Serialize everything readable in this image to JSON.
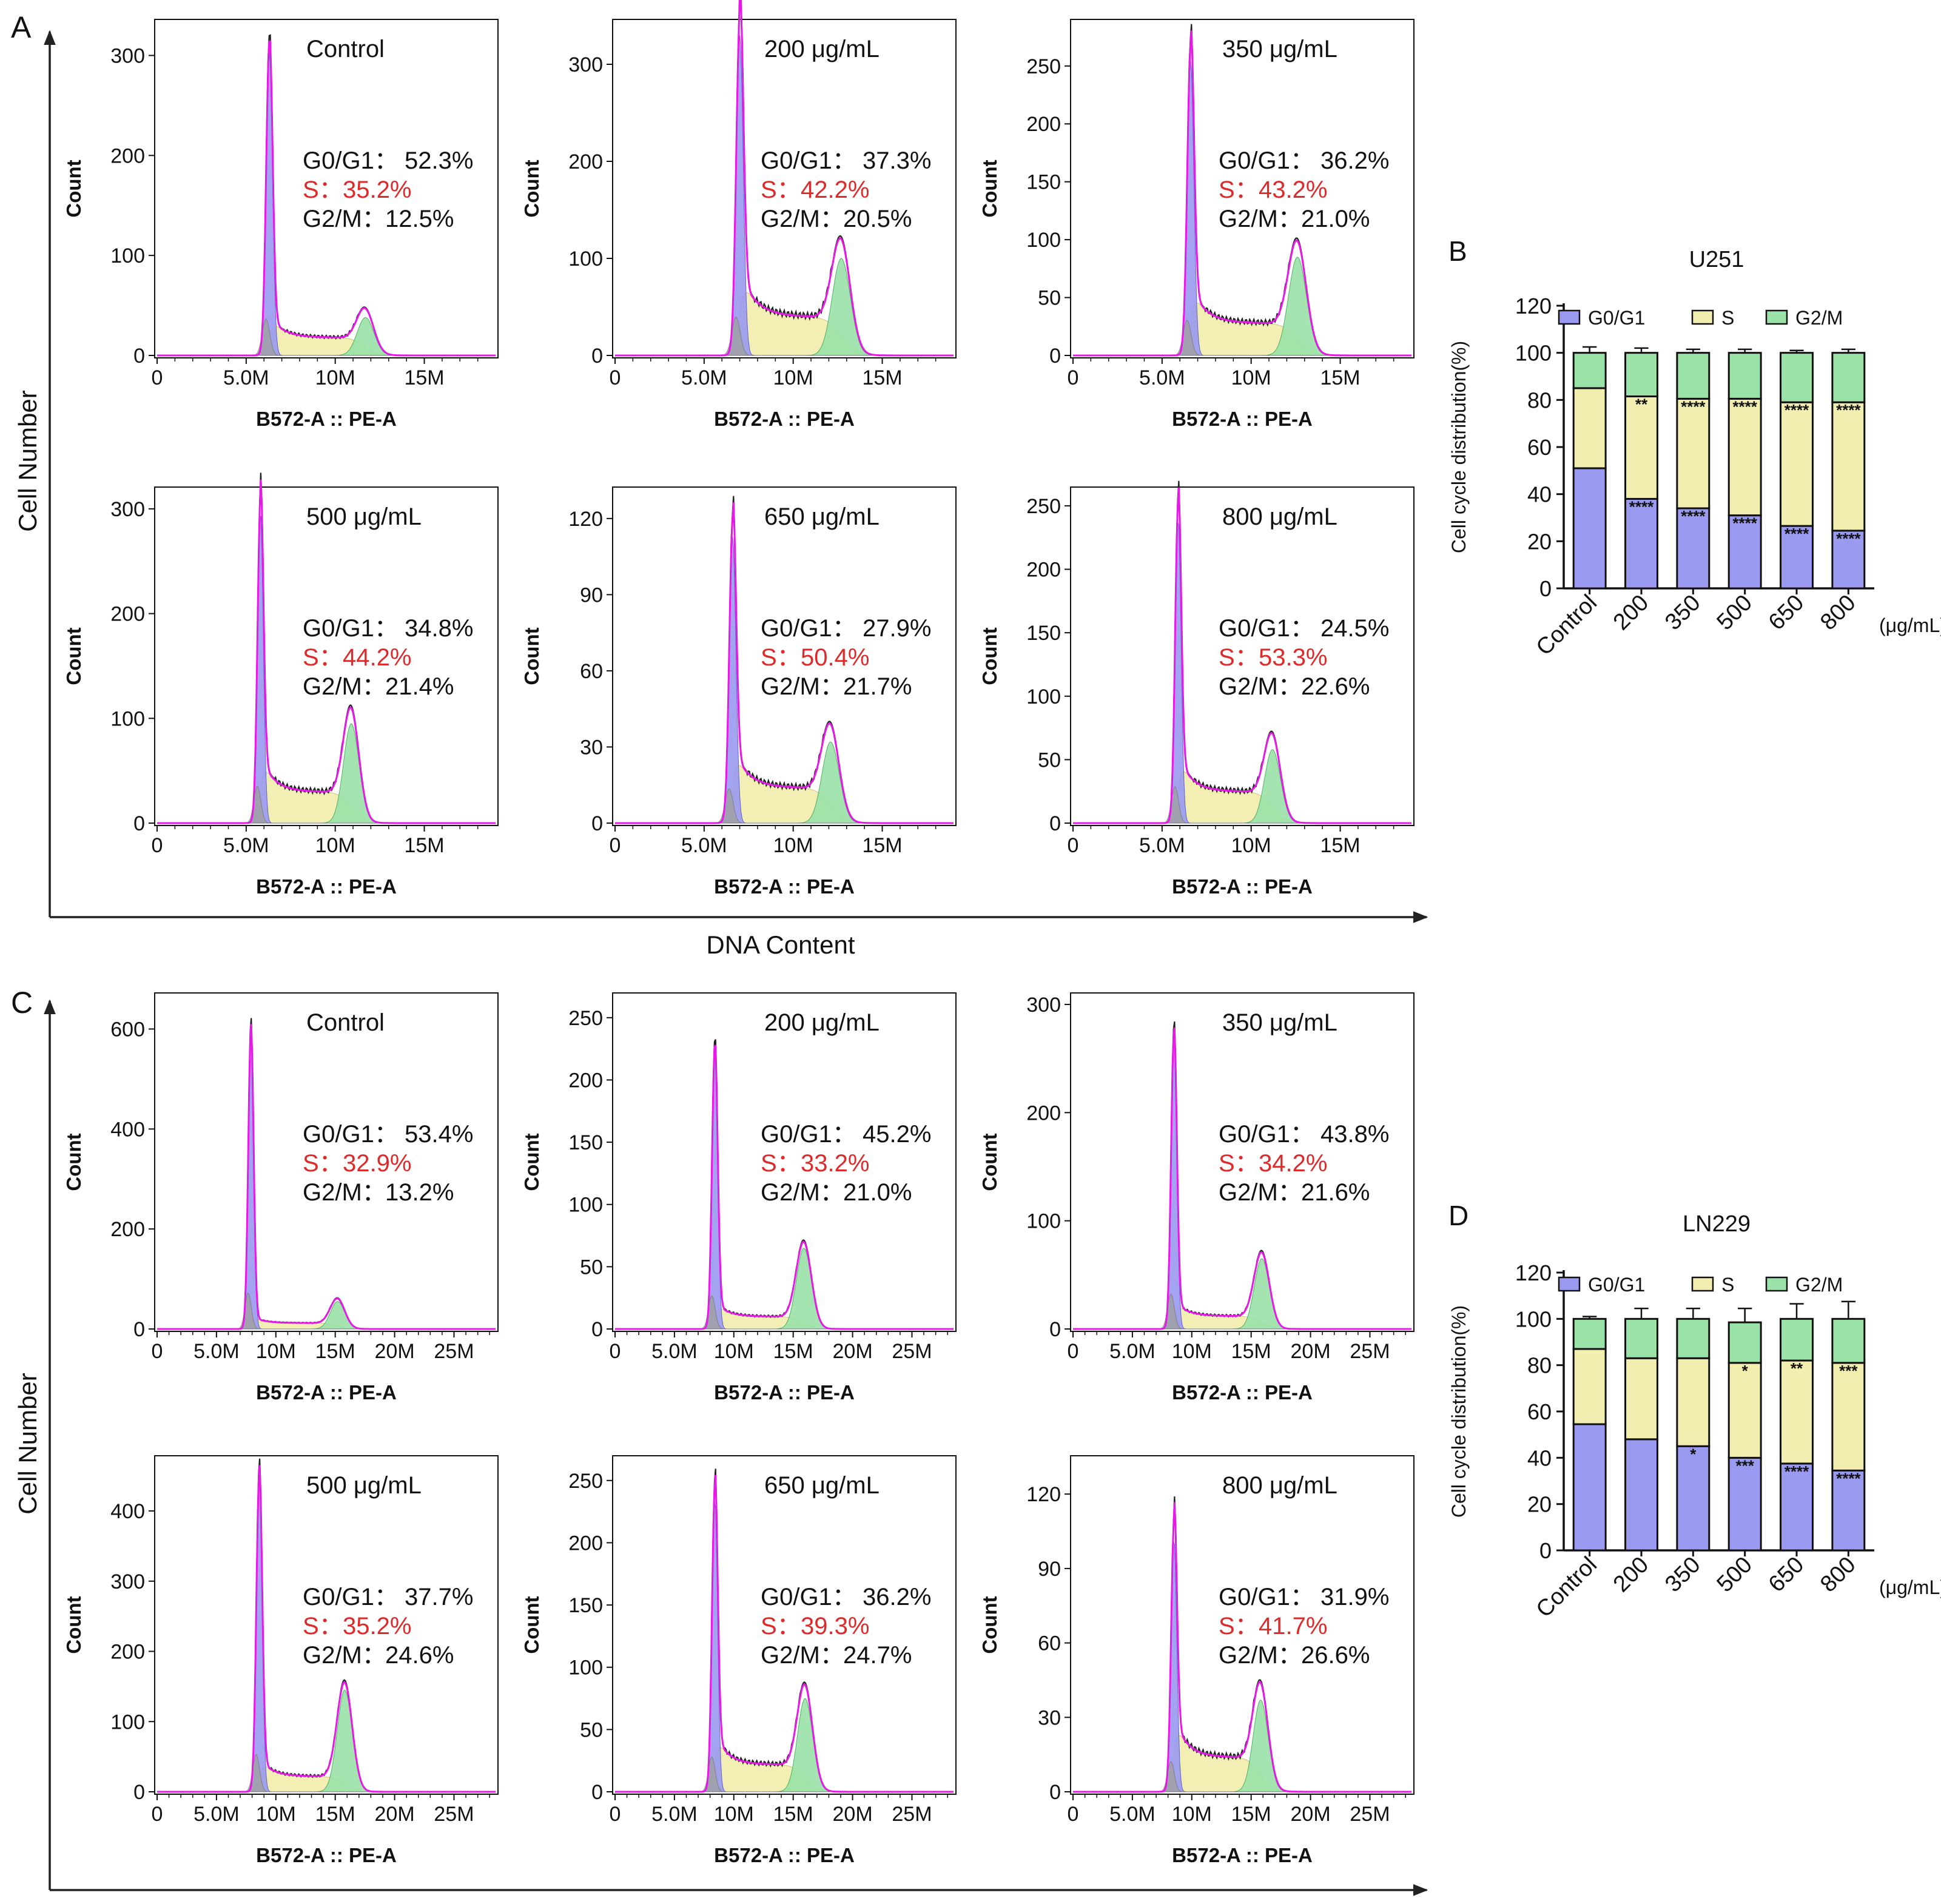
{
  "colors": {
    "g0g1": "#9a9af0",
    "s": "#f2eeb0",
    "g2m": "#9ae2a8",
    "fit": "#e619e6",
    "data": "#222222",
    "s_text": "#dd2a2a",
    "debris": "#a0a0a0"
  },
  "big_panels": [
    {
      "letter": "A",
      "ylabel": "Cell Number",
      "xlabel": "DNA Content"
    },
    {
      "letter": "C",
      "ylabel": "Cell Number",
      "xlabel": ""
    }
  ],
  "histograms": [
    {
      "panel": "A",
      "title": "Control",
      "ylabel": "Count",
      "xlabel": "B572-A :: PE-A",
      "yticks": [
        "300",
        "200",
        "100",
        "0"
      ],
      "ymax": 330,
      "xticks": [
        "0",
        "5.0M",
        "10M",
        "15M"
      ],
      "xmax": 19,
      "g1_label": "G0/G1：",
      "g1_value": "52.3%",
      "s_label": "S：",
      "s_value": "35.2%",
      "g2_label": "G2/M：",
      "g2_value": "12.5%",
      "g1_pos": 6.3,
      "g1_peak": 305,
      "g2_pos": 11.7,
      "g2_peak": 38,
      "s_level": 18
    },
    {
      "panel": "A",
      "title": "200 μg/mL",
      "ylabel": "Count",
      "xlabel": "B572-A :: PE-A",
      "yticks": [
        "300",
        "200",
        "100",
        "0"
      ],
      "ymax": 340,
      "xticks": [
        "0",
        "5.0M",
        "10M",
        "15M"
      ],
      "xmax": 19,
      "g1_label": "G0/G1：",
      "g1_value": "37.3%",
      "s_label": "S：",
      "s_value": "42.2%",
      "g2_label": "G2/M：",
      "g2_value": "20.5%",
      "g1_pos": 7.0,
      "g1_peak": 330,
      "g2_pos": 12.7,
      "g2_peak": 100,
      "s_level": 40
    },
    {
      "panel": "A",
      "title": "350 μg/mL",
      "ylabel": "Count",
      "xlabel": "B572-A :: PE-A",
      "yticks": [
        "250",
        "200",
        "150",
        "100",
        "50",
        "0"
      ],
      "ymax": 285,
      "xticks": [
        "0",
        "5.0M",
        "10M",
        "15M"
      ],
      "xmax": 19,
      "g1_label": "G0/G1：",
      "g1_value": "36.2%",
      "s_label": "S：",
      "s_value": "43.2%",
      "g2_label": "G2/M：",
      "g2_value": "21.0%",
      "g1_pos": 6.6,
      "g1_peak": 255,
      "g2_pos": 12.6,
      "g2_peak": 85,
      "s_level": 28
    },
    {
      "panel": "A",
      "title": "500 μg/mL",
      "ylabel": "Count",
      "xlabel": "B572-A :: PE-A",
      "yticks": [
        "300",
        "200",
        "100",
        "0"
      ],
      "ymax": 315,
      "xticks": [
        "0",
        "5.0M",
        "10M",
        "15M"
      ],
      "xmax": 19,
      "g1_label": "G0/G1：",
      "g1_value": "34.8%",
      "s_label": "S：",
      "s_value": "44.2%",
      "g2_label": "G2/M：",
      "g2_value": "21.4%",
      "g1_pos": 5.8,
      "g1_peak": 295,
      "g2_pos": 10.9,
      "g2_peak": 95,
      "s_level": 30
    },
    {
      "panel": "A",
      "title": "650 μg/mL",
      "ylabel": "Count",
      "xlabel": "B572-A :: PE-A",
      "yticks": [
        "120",
        "90",
        "60",
        "30",
        "0"
      ],
      "ymax": 130,
      "xticks": [
        "0",
        "5.0M",
        "10M",
        "15M"
      ],
      "xmax": 19,
      "g1_label": "G0/G1：",
      "g1_value": "27.9%",
      "s_label": "S：",
      "s_value": "50.4%",
      "g2_label": "G2/M：",
      "g2_value": "21.7%",
      "g1_pos": 6.6,
      "g1_peak": 113,
      "g2_pos": 12.1,
      "g2_peak": 32,
      "s_level": 14
    },
    {
      "panel": "A",
      "title": "800 μg/mL",
      "ylabel": "Count",
      "xlabel": "B572-A :: PE-A",
      "yticks": [
        "250",
        "200",
        "150",
        "100",
        "50",
        "0"
      ],
      "ymax": 260,
      "xticks": [
        "0",
        "5.0M",
        "10M",
        "15M"
      ],
      "xmax": 19,
      "g1_label": "G0/G1：",
      "g1_value": "24.5%",
      "s_label": "S：",
      "s_value": "53.3%",
      "g2_label": "G2/M：",
      "g2_value": "22.6%",
      "g1_pos": 5.9,
      "g1_peak": 240,
      "g2_pos": 11.2,
      "g2_peak": 58,
      "s_level": 25
    },
    {
      "panel": "C",
      "title": "Control",
      "ylabel": "Count",
      "xlabel": "B572-A :: PE-A",
      "yticks": [
        "600",
        "400",
        "200",
        "0"
      ],
      "ymax": 660,
      "xticks": [
        "0",
        "5.0M",
        "10M",
        "15M",
        "20M",
        "25M"
      ],
      "xmax": 28.5,
      "g1_label": "G0/G1：",
      "g1_value": "53.4%",
      "s_label": "S：",
      "s_value": "32.9%",
      "g2_label": "G2/M：",
      "g2_value": "13.2%",
      "g1_pos": 7.9,
      "g1_peak": 600,
      "g2_pos": 15.2,
      "g2_peak": 55,
      "s_level": 12
    },
    {
      "panel": "C",
      "title": "200 μg/mL",
      "ylabel": "Count",
      "xlabel": "B572-A :: PE-A",
      "yticks": [
        "250",
        "200",
        "150",
        "100",
        "50",
        "0"
      ],
      "ymax": 265,
      "xticks": [
        "0",
        "5.0M",
        "10M",
        "15M",
        "20M",
        "25M"
      ],
      "xmax": 28.5,
      "g1_label": "G0/G1：",
      "g1_value": "45.2%",
      "s_label": "S：",
      "s_value": "33.2%",
      "g2_label": "G2/M：",
      "g2_value": "21.0%",
      "g1_pos": 8.4,
      "g1_peak": 223,
      "g2_pos": 15.9,
      "g2_peak": 65,
      "s_level": 10
    },
    {
      "panel": "C",
      "title": "350 μg/mL",
      "ylabel": "Count",
      "xlabel": "B572-A :: PE-A",
      "yticks": [
        "300",
        "200",
        "100",
        "0"
      ],
      "ymax": 305,
      "xticks": [
        "0",
        "5.0M",
        "10M",
        "15M",
        "20M",
        "25M"
      ],
      "xmax": 28.5,
      "g1_label": "G0/G1：",
      "g1_value": "43.8%",
      "s_label": "S：",
      "s_value": "34.2%",
      "g2_label": "G2/M：",
      "g2_value": "21.6%",
      "g1_pos": 8.5,
      "g1_peak": 270,
      "g2_pos": 15.9,
      "g2_peak": 65,
      "s_level": 12
    },
    {
      "panel": "C",
      "title": "500 μg/mL",
      "ylabel": "Count",
      "xlabel": "B572-A :: PE-A",
      "yticks": [
        "400",
        "300",
        "200",
        "100",
        "0"
      ],
      "ymax": 470,
      "xticks": [
        "0",
        "5.0M",
        "10M",
        "15M",
        "20M",
        "25M"
      ],
      "xmax": 28.5,
      "g1_label": "G0/G1：",
      "g1_value": "37.7%",
      "s_label": "S：",
      "s_value": "35.2%",
      "g2_label": "G2/M：",
      "g2_value": "24.6%",
      "g1_pos": 8.6,
      "g1_peak": 445,
      "g2_pos": 15.8,
      "g2_peak": 145,
      "s_level": 22
    },
    {
      "panel": "C",
      "title": "650 μg/mL",
      "ylabel": "Count",
      "xlabel": "B572-A :: PE-A",
      "yticks": [
        "250",
        "200",
        "150",
        "100",
        "50",
        "0"
      ],
      "ymax": 265,
      "xticks": [
        "0",
        "5.0M",
        "10M",
        "15M",
        "20M",
        "25M"
      ],
      "xmax": 28.5,
      "g1_label": "G0/G1：",
      "g1_value": "36.2%",
      "s_label": "S：",
      "s_value": "39.3%",
      "g2_label": "G2/M：",
      "g2_value": "24.7%",
      "g1_pos": 8.4,
      "g1_peak": 235,
      "g2_pos": 16.0,
      "g2_peak": 75,
      "s_level": 22
    },
    {
      "panel": "C",
      "title": "800 μg/mL",
      "ylabel": "Count",
      "xlabel": "B572-A :: PE-A",
      "yticks": [
        "120",
        "90",
        "60",
        "30",
        "0"
      ],
      "ymax": 133,
      "xticks": [
        "0",
        "5.0M",
        "10M",
        "15M",
        "20M",
        "25M"
      ],
      "xmax": 28.5,
      "g1_label": "G0/G1：",
      "g1_value": "31.9%",
      "s_label": "S：",
      "s_value": "41.7%",
      "g2_label": "G2/M：",
      "g2_value": "26.6%",
      "g1_pos": 8.5,
      "g1_peak": 102,
      "g2_pos": 15.8,
      "g2_peak": 37,
      "s_level": 14
    }
  ],
  "chart_data": [
    {
      "letter": "B",
      "type": "bar",
      "stacked": true,
      "title": "U251",
      "ylabel": "Cell cycle distribution(%)",
      "unit": "(μg/mL)",
      "yticks": [
        "120",
        "100",
        "80",
        "60",
        "40",
        "20",
        "0"
      ],
      "ylim": [
        0,
        120
      ],
      "categories": [
        "Control",
        "200",
        "350",
        "500",
        "650",
        "800"
      ],
      "series": [
        {
          "name": "G0/G1",
          "values": [
            51,
            38,
            34,
            31,
            26.5,
            24.5
          ],
          "errors": [
            2.5,
            2,
            1.5,
            3,
            2,
            3
          ],
          "sig": [
            "",
            "****",
            "****",
            "****",
            "****",
            "****"
          ]
        },
        {
          "name": "S",
          "values": [
            34,
            43.5,
            46.5,
            49.5,
            52.5,
            54.5
          ],
          "errors": [
            4,
            1.5,
            2,
            4,
            2.5,
            2.5
          ],
          "sig": [
            "",
            "**",
            "****",
            "****",
            "****",
            "****"
          ]
        },
        {
          "name": "G2/M",
          "values": [
            15,
            18.5,
            19.5,
            19.5,
            21,
            21
          ],
          "errors": [
            2.5,
            2,
            1.5,
            1.5,
            1,
            1.5
          ],
          "sig": [
            "",
            "",
            "",
            "",
            "",
            ""
          ]
        }
      ],
      "legend": [
        "G0/G1",
        "S",
        "G2/M"
      ],
      "legend_position": "top"
    },
    {
      "letter": "D",
      "type": "bar",
      "stacked": true,
      "title": "LN229",
      "ylabel": "Cell cycle distribution(%)",
      "unit": "(μg/mL)",
      "yticks": [
        "120",
        "100",
        "80",
        "60",
        "40",
        "20",
        "0"
      ],
      "ylim": [
        0,
        120
      ],
      "categories": [
        "Control",
        "200",
        "350",
        "500",
        "650",
        "800"
      ],
      "series": [
        {
          "name": "G0/G1",
          "values": [
            54.5,
            48,
            45,
            40,
            37.5,
            34.5
          ],
          "errors": [
            3,
            3,
            1.5,
            2,
            1.5,
            1.5
          ],
          "sig": [
            "",
            "",
            "*",
            "***",
            "****",
            "****"
          ]
        },
        {
          "name": "S",
          "values": [
            32.5,
            35,
            38,
            41,
            44.5,
            46.5
          ],
          "errors": [
            2.5,
            2.5,
            3,
            4.5,
            4.5,
            4.5
          ],
          "sig": [
            "",
            "",
            "",
            "*",
            "**",
            "***"
          ]
        },
        {
          "name": "G2/M",
          "values": [
            13,
            17,
            17,
            17.5,
            18,
            19
          ],
          "errors": [
            1,
            4.5,
            4.5,
            6,
            6.5,
            7.5
          ],
          "sig": [
            "",
            "",
            "",
            "",
            "",
            ""
          ]
        }
      ],
      "legend": [
        "G0/G1",
        "S",
        "G2/M"
      ],
      "legend_position": "top"
    }
  ]
}
